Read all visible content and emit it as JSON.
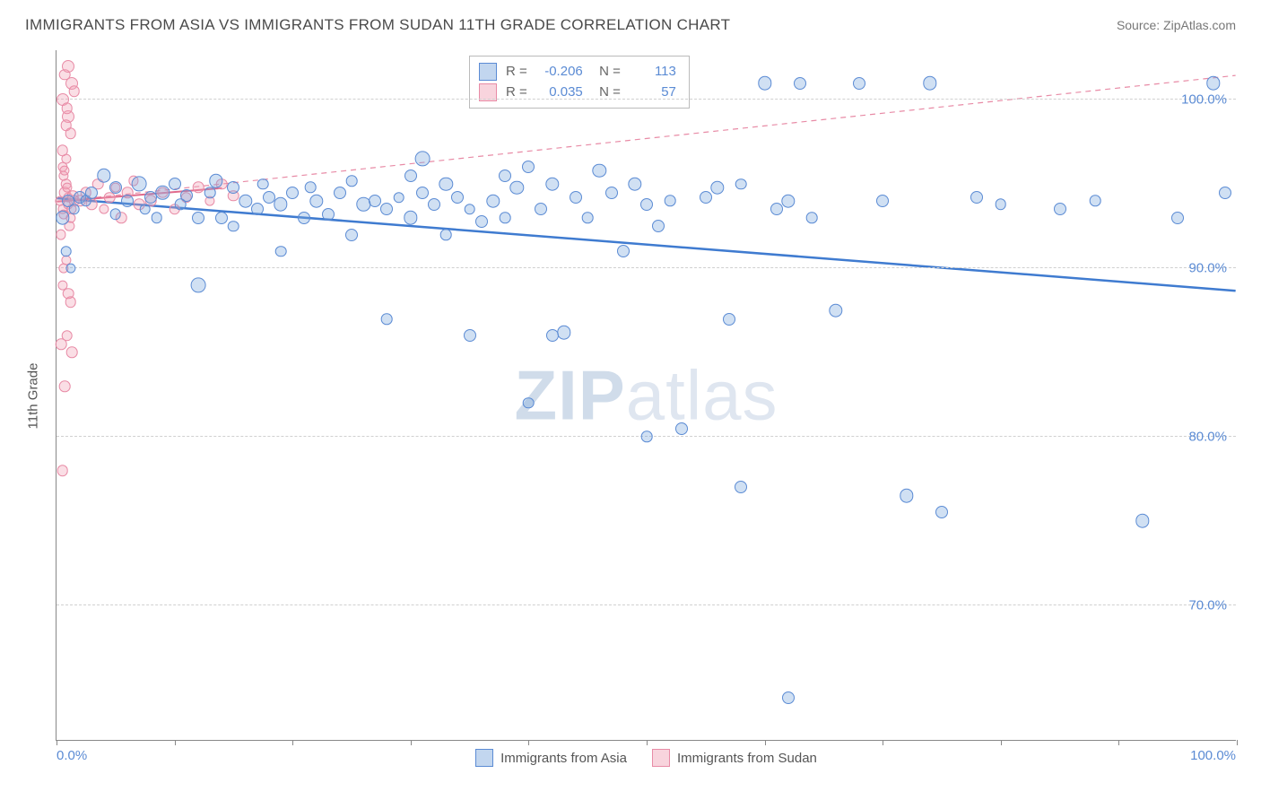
{
  "title": "IMMIGRANTS FROM ASIA VS IMMIGRANTS FROM SUDAN 11TH GRADE CORRELATION CHART",
  "source": "Source: ZipAtlas.com",
  "ylabel": "11th Grade",
  "watermark_bold": "ZIP",
  "watermark_light": "atlas",
  "chart": {
    "type": "scatter-correlation",
    "xlim": [
      0,
      100
    ],
    "ylim": [
      62,
      103
    ],
    "x_axis_labels": {
      "min": "0.0%",
      "max": "100.0%"
    },
    "y_ticks": [
      {
        "v": 100,
        "label": "100.0%"
      },
      {
        "v": 90,
        "label": "90.0%"
      },
      {
        "v": 80,
        "label": "80.0%"
      },
      {
        "v": 70,
        "label": "70.0%"
      }
    ],
    "x_tick_step": 10,
    "grid_color": "#d0d0d0",
    "background": "#ffffff",
    "series": [
      {
        "name": "Immigrants from Asia",
        "key": "asia",
        "color_fill": "rgba(120,165,220,0.35)",
        "color_stroke": "#5b8bd4",
        "R": "-0.206",
        "N": "113",
        "trend": {
          "x1": 0,
          "y1": 94.2,
          "x2": 100,
          "y2": 88.7,
          "dash": false,
          "width": 2.5,
          "color": "#3f7bd0"
        }
      },
      {
        "name": "Immigrants from Sudan",
        "key": "sudan",
        "color_fill": "rgba(240,160,180,0.35)",
        "color_stroke": "#e88ba6",
        "R": "0.035",
        "N": "57",
        "trend": {
          "x1": 0,
          "y1": 94.0,
          "x2": 100,
          "y2": 101.5,
          "dash": true,
          "width": 1.2,
          "color": "#e88ba6"
        }
      }
    ],
    "points_asia": [
      [
        1,
        94,
        10
      ],
      [
        1.5,
        93.5,
        9
      ],
      [
        2,
        94.2,
        10
      ],
      [
        2.5,
        94,
        9
      ],
      [
        0.8,
        91,
        9
      ],
      [
        1.2,
        90,
        8
      ],
      [
        0.5,
        93,
        11
      ],
      [
        3,
        94.5,
        10
      ],
      [
        4,
        95.5,
        11
      ],
      [
        5,
        94.8,
        10
      ],
      [
        5,
        93.2,
        9
      ],
      [
        6,
        94,
        10
      ],
      [
        7,
        95,
        12
      ],
      [
        7.5,
        93.5,
        9
      ],
      [
        8,
        94.2,
        10
      ],
      [
        8.5,
        93,
        9
      ],
      [
        9,
        94.5,
        11
      ],
      [
        10,
        95,
        10
      ],
      [
        10.5,
        93.8,
        9
      ],
      [
        11,
        94.3,
        10
      ],
      [
        12,
        93,
        10
      ],
      [
        12,
        89,
        12
      ],
      [
        13,
        94.5,
        9
      ],
      [
        13.5,
        95.2,
        11
      ],
      [
        14,
        93,
        10
      ],
      [
        15,
        94.8,
        10
      ],
      [
        15,
        92.5,
        9
      ],
      [
        16,
        94,
        11
      ],
      [
        17,
        93.5,
        10
      ],
      [
        17.5,
        95,
        9
      ],
      [
        18,
        94.2,
        10
      ],
      [
        19,
        93.8,
        11
      ],
      [
        19,
        91,
        9
      ],
      [
        20,
        94.5,
        10
      ],
      [
        21,
        93,
        10
      ],
      [
        21.5,
        94.8,
        9
      ],
      [
        22,
        94,
        11
      ],
      [
        23,
        93.2,
        10
      ],
      [
        24,
        94.5,
        10
      ],
      [
        25,
        92,
        10
      ],
      [
        25,
        95.2,
        9
      ],
      [
        26,
        93.8,
        11
      ],
      [
        27,
        94,
        10
      ],
      [
        28,
        93.5,
        10
      ],
      [
        28,
        87,
        9
      ],
      [
        29,
        94.2,
        9
      ],
      [
        30,
        93,
        11
      ],
      [
        30,
        95.5,
        10
      ],
      [
        31,
        96.5,
        12
      ],
      [
        31,
        94.5,
        10
      ],
      [
        32,
        93.8,
        10
      ],
      [
        33,
        92,
        9
      ],
      [
        33,
        95,
        11
      ],
      [
        34,
        94.2,
        10
      ],
      [
        35,
        86,
        10
      ],
      [
        35,
        93.5,
        9
      ],
      [
        36,
        92.8,
        10
      ],
      [
        37,
        94,
        11
      ],
      [
        38,
        95.5,
        10
      ],
      [
        38,
        93,
        9
      ],
      [
        39,
        94.8,
        11
      ],
      [
        40,
        96,
        10
      ],
      [
        40,
        82,
        9
      ],
      [
        41,
        93.5,
        10
      ],
      [
        42,
        95,
        11
      ],
      [
        42,
        86,
        10
      ],
      [
        43,
        86.2,
        11
      ],
      [
        44,
        94.2,
        10
      ],
      [
        45,
        93,
        9
      ],
      [
        46,
        95.8,
        11
      ],
      [
        47,
        94.5,
        10
      ],
      [
        48,
        91,
        10
      ],
      [
        49,
        95,
        11
      ],
      [
        50,
        93.8,
        10
      ],
      [
        50,
        80,
        9
      ],
      [
        51,
        92.5,
        10
      ],
      [
        52,
        94,
        9
      ],
      [
        53,
        80.5,
        10
      ],
      [
        55,
        94.2,
        10
      ],
      [
        56,
        94.8,
        11
      ],
      [
        57,
        87,
        10
      ],
      [
        58,
        77,
        10
      ],
      [
        58,
        95,
        9
      ],
      [
        60,
        101,
        11
      ],
      [
        61,
        93.5,
        10
      ],
      [
        62,
        94,
        11
      ],
      [
        63,
        101,
        10
      ],
      [
        64,
        93,
        9
      ],
      [
        66,
        87.5,
        11
      ],
      [
        68,
        101,
        10
      ],
      [
        70,
        94,
        10
      ],
      [
        72,
        76.5,
        11
      ],
      [
        74,
        101,
        11
      ],
      [
        75,
        75.5,
        10
      ],
      [
        78,
        94.2,
        10
      ],
      [
        80,
        93.8,
        9
      ],
      [
        62,
        64.5,
        10
      ],
      [
        85,
        93.5,
        10
      ],
      [
        92,
        75,
        11
      ],
      [
        88,
        94,
        9
      ],
      [
        95,
        93,
        10
      ],
      [
        98,
        101,
        11
      ],
      [
        99,
        94.5,
        10
      ]
    ],
    "points_sudan": [
      [
        0.3,
        94,
        8
      ],
      [
        0.5,
        93.5,
        8
      ],
      [
        0.8,
        95,
        9
      ],
      [
        0.5,
        96,
        8
      ],
      [
        1,
        94.2,
        8
      ],
      [
        1.2,
        93,
        8
      ],
      [
        0.4,
        92,
        8
      ],
      [
        0.7,
        94.5,
        9
      ],
      [
        1,
        93.8,
        8
      ],
      [
        0.6,
        95.5,
        8
      ],
      [
        1.5,
        94,
        9
      ],
      [
        0.8,
        96.5,
        8
      ],
      [
        1.3,
        93.5,
        8
      ],
      [
        0.5,
        97,
        9
      ],
      [
        0.9,
        94.8,
        8
      ],
      [
        1.1,
        92.5,
        8
      ],
      [
        0.7,
        95.8,
        8
      ],
      [
        1.4,
        94.3,
        9
      ],
      [
        0.6,
        93.2,
        8
      ],
      [
        1,
        99,
        10
      ],
      [
        0.8,
        98.5,
        9
      ],
      [
        1.2,
        98,
        9
      ],
      [
        0.5,
        100,
        10
      ],
      [
        0.9,
        99.5,
        9
      ],
      [
        1.3,
        101,
        10
      ],
      [
        0.7,
        101.5,
        9
      ],
      [
        1,
        102,
        10
      ],
      [
        1.5,
        100.5,
        9
      ],
      [
        0.8,
        90.5,
        8
      ],
      [
        0.5,
        89,
        8
      ],
      [
        1.2,
        88,
        9
      ],
      [
        0.6,
        90,
        8
      ],
      [
        1,
        88.5,
        9
      ],
      [
        0.4,
        85.5,
        9
      ],
      [
        0.9,
        86,
        9
      ],
      [
        1.3,
        85,
        9
      ],
      [
        0.7,
        83,
        9
      ],
      [
        0.5,
        78,
        9
      ],
      [
        2,
        94,
        9
      ],
      [
        2.5,
        94.5,
        9
      ],
      [
        3,
        93.8,
        9
      ],
      [
        3.5,
        95,
        9
      ],
      [
        4,
        93.5,
        8
      ],
      [
        4.5,
        94.2,
        9
      ],
      [
        5,
        94.8,
        8
      ],
      [
        5.5,
        93,
        9
      ],
      [
        6,
        94.5,
        9
      ],
      [
        6.5,
        95.2,
        8
      ],
      [
        7,
        93.8,
        9
      ],
      [
        8,
        94,
        9
      ],
      [
        9,
        94.5,
        8
      ],
      [
        10,
        93.5,
        9
      ],
      [
        11,
        94.2,
        9
      ],
      [
        12,
        94.8,
        9
      ],
      [
        13,
        94,
        8
      ],
      [
        15,
        94.3,
        9
      ],
      [
        14,
        95,
        9
      ]
    ]
  }
}
